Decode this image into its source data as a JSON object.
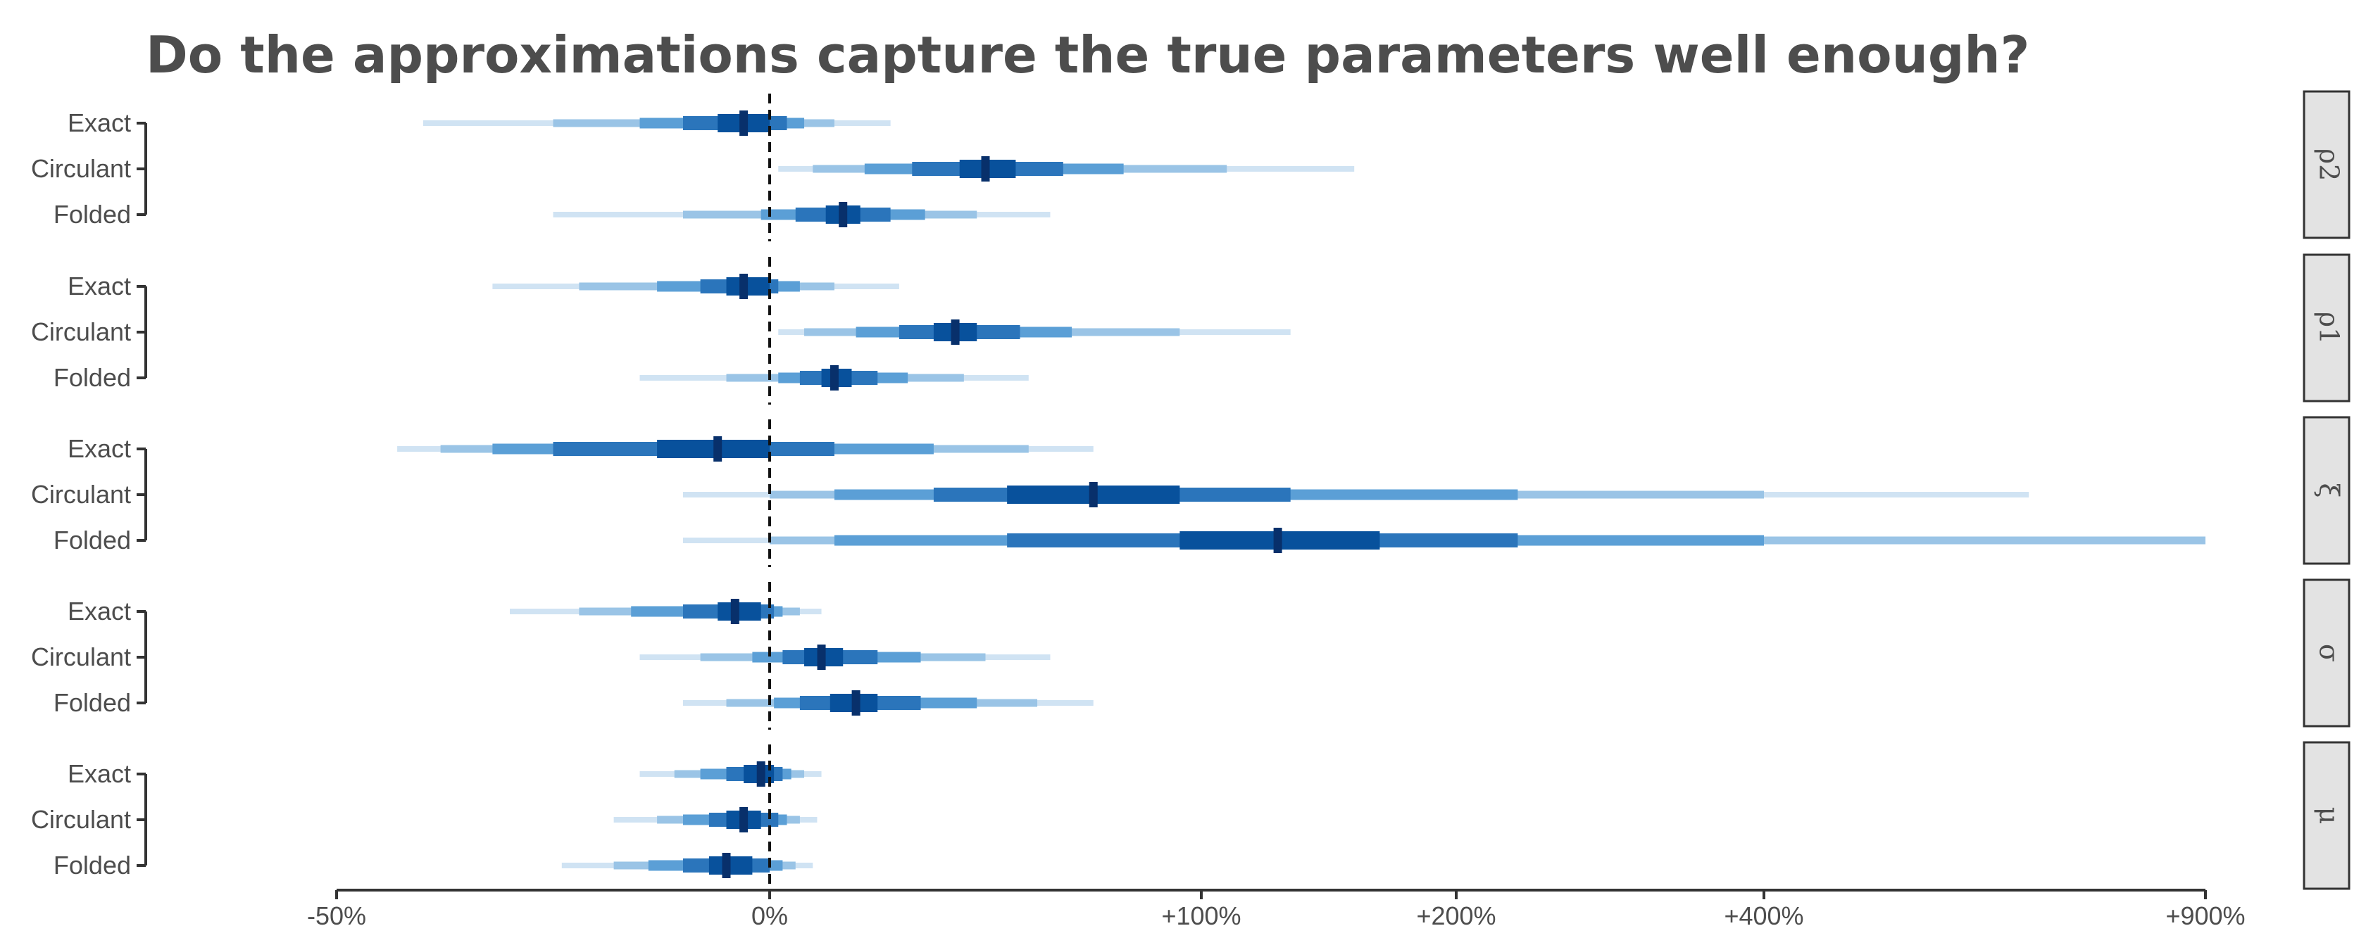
{
  "chart_data": {
    "type": "interval",
    "title": "Do the approximations capture the true parameters well enough?",
    "xlabel": "",
    "ylabel": "",
    "x_scale": "pseudo-log",
    "x_ticks": [
      {
        "value": -50,
        "label": "-50%"
      },
      {
        "value": 0,
        "label": "0%"
      },
      {
        "value": 100,
        "label": "+100%"
      },
      {
        "value": 200,
        "label": "+200%"
      },
      {
        "value": 400,
        "label": "+400%"
      },
      {
        "value": 900,
        "label": "+900%"
      }
    ],
    "xlim": [
      -50,
      900
    ],
    "reference_line": {
      "value": 0,
      "style": "dashed"
    },
    "panels": [
      {
        "label": "ρ2",
        "rows": [
          {
            "name": "Exact",
            "median": -3,
            "intervals": [
              [
                -6,
                0
              ],
              [
                -10,
                4
              ],
              [
                -15,
                8
              ],
              [
                -25,
                15
              ],
              [
                -40,
                28
              ]
            ]
          },
          {
            "name": "Circulant",
            "median": 50,
            "intervals": [
              [
                44,
                57
              ],
              [
                33,
                68
              ],
              [
                22,
                82
              ],
              [
                10,
                110
              ],
              [
                2,
                160
              ]
            ]
          },
          {
            "name": "Folded",
            "median": 17,
            "intervals": [
              [
                13,
                21
              ],
              [
                6,
                28
              ],
              [
                -1,
                36
              ],
              [
                -10,
                48
              ],
              [
                -25,
                65
              ]
            ]
          }
        ]
      },
      {
        "label": "ρ1",
        "rows": [
          {
            "name": "Exact",
            "median": -3,
            "intervals": [
              [
                -5,
                0
              ],
              [
                -8,
                2
              ],
              [
                -13,
                7
              ],
              [
                -22,
                15
              ],
              [
                -32,
                30
              ]
            ]
          },
          {
            "name": "Circulant",
            "median": 43,
            "intervals": [
              [
                38,
                48
              ],
              [
                30,
                58
              ],
              [
                20,
                70
              ],
              [
                8,
                95
              ],
              [
                2,
                135
              ]
            ]
          },
          {
            "name": "Folded",
            "median": 15,
            "intervals": [
              [
                12,
                19
              ],
              [
                7,
                25
              ],
              [
                2,
                32
              ],
              [
                -5,
                45
              ],
              [
                -15,
                60
              ]
            ]
          }
        ]
      },
      {
        "label": "ξ",
        "rows": [
          {
            "name": "Exact",
            "median": -6,
            "intervals": [
              [
                -13,
                0
              ],
              [
                -25,
                15
              ],
              [
                -32,
                38
              ],
              [
                -38,
                60
              ],
              [
                -43,
                75
              ]
            ]
          },
          {
            "name": "Circulant",
            "median": 75,
            "intervals": [
              [
                55,
                95
              ],
              [
                38,
                135
              ],
              [
                15,
                240
              ],
              [
                0,
                400
              ],
              [
                -10,
                700
              ]
            ]
          },
          {
            "name": "Folded",
            "median": 130,
            "intervals": [
              [
                95,
                170
              ],
              [
                55,
                240
              ],
              [
                15,
                400
              ],
              [
                0,
                900
              ],
              [
                -10,
                900
              ]
            ]
          }
        ]
      },
      {
        "label": "σ",
        "rows": [
          {
            "name": "Exact",
            "median": -4,
            "intervals": [
              [
                -6,
                -1
              ],
              [
                -10,
                1
              ],
              [
                -16,
                3
              ],
              [
                -22,
                7
              ],
              [
                -30,
                12
              ]
            ]
          },
          {
            "name": "Circulant",
            "median": 12,
            "intervals": [
              [
                8,
                17
              ],
              [
                3,
                25
              ],
              [
                -2,
                35
              ],
              [
                -8,
                50
              ],
              [
                -15,
                65
              ]
            ]
          },
          {
            "name": "Folded",
            "median": 20,
            "intervals": [
              [
                14,
                25
              ],
              [
                7,
                35
              ],
              [
                1,
                48
              ],
              [
                -5,
                62
              ],
              [
                -10,
                75
              ]
            ]
          }
        ]
      },
      {
        "label": "μ",
        "rows": [
          {
            "name": "Exact",
            "median": -1,
            "intervals": [
              [
                -3,
                1
              ],
              [
                -5,
                3
              ],
              [
                -8,
                5
              ],
              [
                -11,
                8
              ],
              [
                -15,
                12
              ]
            ]
          },
          {
            "name": "Circulant",
            "median": -3,
            "intervals": [
              [
                -5,
                -1
              ],
              [
                -7,
                2
              ],
              [
                -10,
                4
              ],
              [
                -13,
                7
              ],
              [
                -18,
                11
              ]
            ]
          },
          {
            "name": "Folded",
            "median": -5,
            "intervals": [
              [
                -7,
                -2
              ],
              [
                -10,
                0
              ],
              [
                -14,
                3
              ],
              [
                -18,
                6
              ],
              [
                -24,
                10
              ]
            ]
          }
        ]
      }
    ],
    "colors": [
      "#08519c",
      "#2b75bb",
      "#5b9fd6",
      "#9ac4e6",
      "#d0e3f3"
    ],
    "legend": "none"
  }
}
